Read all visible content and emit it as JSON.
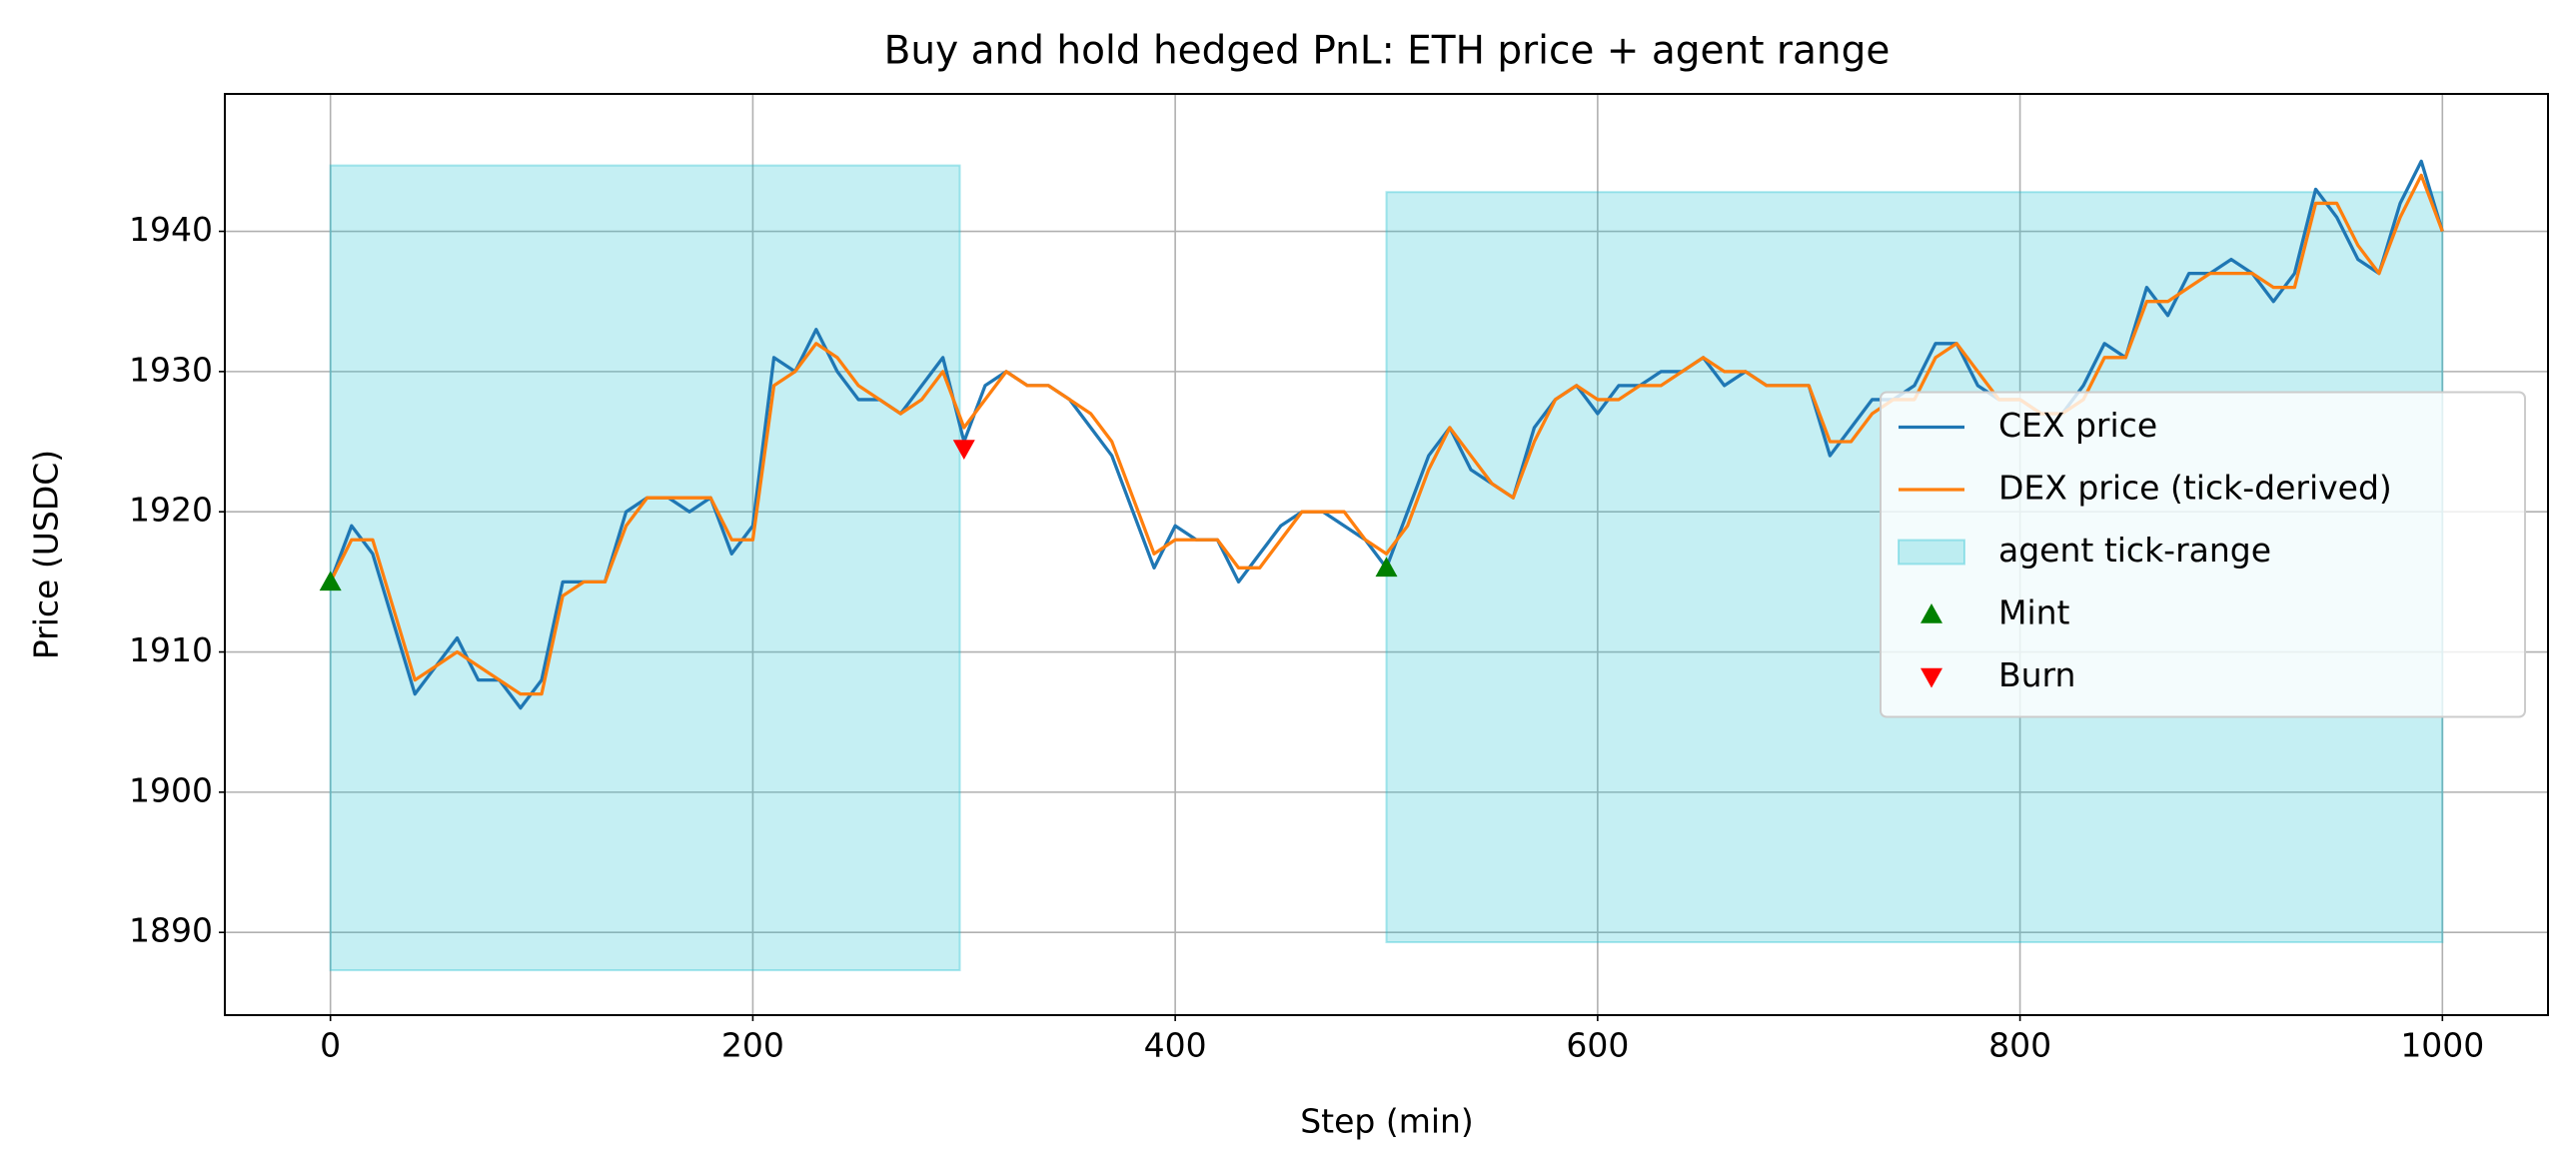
{
  "chart_data": {
    "type": "line",
    "title": "Buy and hold hedged PnL: ETH price + agent range",
    "x_label": "Step (min)",
    "y_label": "Price (USDC)",
    "xlim": [
      -50,
      1050
    ],
    "ylim": [
      1884.1,
      1949.8
    ],
    "xticks": [
      0,
      200,
      400,
      600,
      800,
      1000
    ],
    "yticks": [
      1890,
      1900,
      1910,
      1920,
      1930,
      1940
    ],
    "grid": true,
    "legend": "center right",
    "x": [
      0,
      10,
      20,
      30,
      40,
      50,
      60,
      70,
      80,
      90,
      100,
      110,
      120,
      130,
      140,
      150,
      160,
      170,
      180,
      190,
      200,
      210,
      220,
      230,
      240,
      250,
      260,
      270,
      280,
      290,
      300,
      310,
      320,
      330,
      340,
      350,
      360,
      370,
      380,
      390,
      400,
      410,
      420,
      430,
      440,
      450,
      460,
      470,
      480,
      490,
      500,
      510,
      520,
      530,
      540,
      550,
      560,
      570,
      580,
      590,
      600,
      610,
      620,
      630,
      640,
      650,
      660,
      670,
      680,
      690,
      700,
      710,
      720,
      730,
      740,
      750,
      760,
      770,
      780,
      790,
      800,
      810,
      820,
      830,
      840,
      850,
      860,
      870,
      880,
      890,
      900,
      910,
      920,
      930,
      940,
      950,
      960,
      970,
      980,
      990,
      1000
    ],
    "series": [
      {
        "name": "CEX price",
        "kind": "line",
        "color": "#1f77b4",
        "values": [
          1915,
          1919,
          1917,
          1912,
          1907,
          1909,
          1911,
          1908,
          1908,
          1906,
          1908,
          1915,
          1915,
          1915,
          1920,
          1921,
          1921,
          1920,
          1921,
          1917,
          1919,
          1931,
          1930,
          1933,
          1930,
          1928,
          1928,
          1927,
          1929,
          1931,
          1925,
          1929,
          1930,
          1929,
          1929,
          1928,
          1926,
          1924,
          1920,
          1916,
          1919,
          1918,
          1918,
          1915,
          1917,
          1919,
          1920,
          1920,
          1919,
          1918,
          1916,
          1920,
          1924,
          1926,
          1923,
          1922,
          1921,
          1926,
          1928,
          1929,
          1927,
          1929,
          1929,
          1930,
          1930,
          1931,
          1929,
          1930,
          1929,
          1929,
          1929,
          1924,
          1926,
          1928,
          1928,
          1929,
          1932,
          1932,
          1929,
          1928,
          1928,
          1927,
          1927,
          1929,
          1932,
          1931,
          1936,
          1934,
          1937,
          1937,
          1938,
          1937,
          1935,
          1937,
          1943,
          1941,
          1938,
          1937,
          1942,
          1945,
          1940
        ]
      },
      {
        "name": "DEX price (tick-derived)",
        "kind": "line",
        "color": "#ff7f0e",
        "values": [
          1915,
          1918,
          1918,
          1913,
          1908,
          1909,
          1910,
          1909,
          1908,
          1907,
          1907,
          1914,
          1915,
          1915,
          1919,
          1921,
          1921,
          1921,
          1921,
          1918,
          1918,
          1929,
          1930,
          1932,
          1931,
          1929,
          1928,
          1927,
          1928,
          1930,
          1926,
          1928,
          1930,
          1929,
          1929,
          1928,
          1927,
          1925,
          1921,
          1917,
          1918,
          1918,
          1918,
          1916,
          1916,
          1918,
          1920,
          1920,
          1920,
          1918,
          1917,
          1919,
          1923,
          1926,
          1924,
          1922,
          1921,
          1925,
          1928,
          1929,
          1928,
          1928,
          1929,
          1929,
          1930,
          1931,
          1930,
          1930,
          1929,
          1929,
          1929,
          1925,
          1925,
          1927,
          1928,
          1928,
          1931,
          1932,
          1930,
          1928,
          1928,
          1927,
          1927,
          1928,
          1931,
          1931,
          1935,
          1935,
          1936,
          1937,
          1937,
          1937,
          1936,
          1936,
          1942,
          1942,
          1939,
          1937,
          1941,
          1944,
          1940
        ]
      },
      {
        "name": "agent tick-range",
        "kind": "band",
        "color": "#17becf",
        "x0": [
          0,
          500
        ],
        "x1": [
          298,
          1000
        ],
        "low": [
          1887.3,
          1889.3
        ],
        "high": [
          1944.7,
          1942.8
        ]
      },
      {
        "name": "Mint",
        "kind": "marker",
        "marker": "up",
        "color": "#008000",
        "x": [
          0,
          500
        ],
        "values": [
          1915,
          1916
        ]
      },
      {
        "name": "Burn",
        "kind": "marker",
        "marker": "down",
        "color": "#ff0000",
        "x": [
          300
        ],
        "values": [
          1924.5
        ]
      }
    ]
  }
}
